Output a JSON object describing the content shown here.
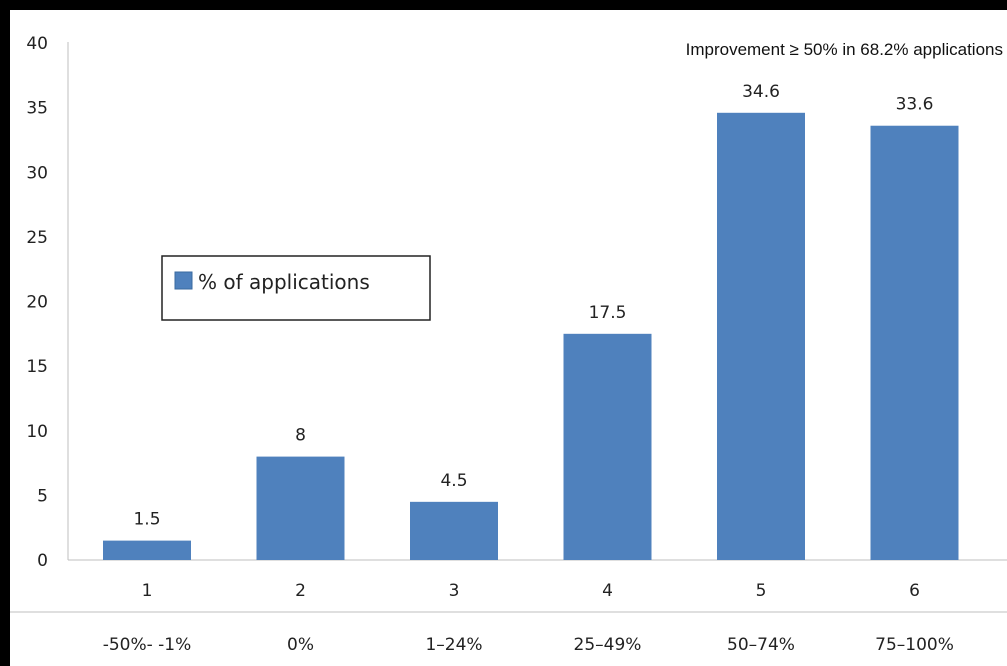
{
  "chart_data": {
    "type": "bar",
    "categories": [
      "1",
      "2",
      "3",
      "4",
      "5",
      "6"
    ],
    "range_labels": [
      "-50%- -1%",
      "0%",
      "1–24%",
      "25–49%",
      "50–74%",
      "75–100%"
    ],
    "series": [
      {
        "name": "% of applications",
        "values": [
          1.5,
          8,
          4.5,
          17.5,
          34.6,
          33.6
        ]
      }
    ],
    "data_labels": [
      "1.5",
      "8",
      "4.5",
      "17.5",
      "34.6",
      "33.6"
    ],
    "title": "",
    "xlabel": "",
    "ylabel": "",
    "ylim": [
      0,
      40
    ],
    "yticks": [
      "0",
      "5",
      "10",
      "15",
      "20",
      "25",
      "30",
      "35",
      "40"
    ],
    "annotation": "Improvement ≥ 50% in 68.2% applications",
    "legend_position": "left-middle",
    "grid": false,
    "bar_color": "#4f81bd"
  }
}
